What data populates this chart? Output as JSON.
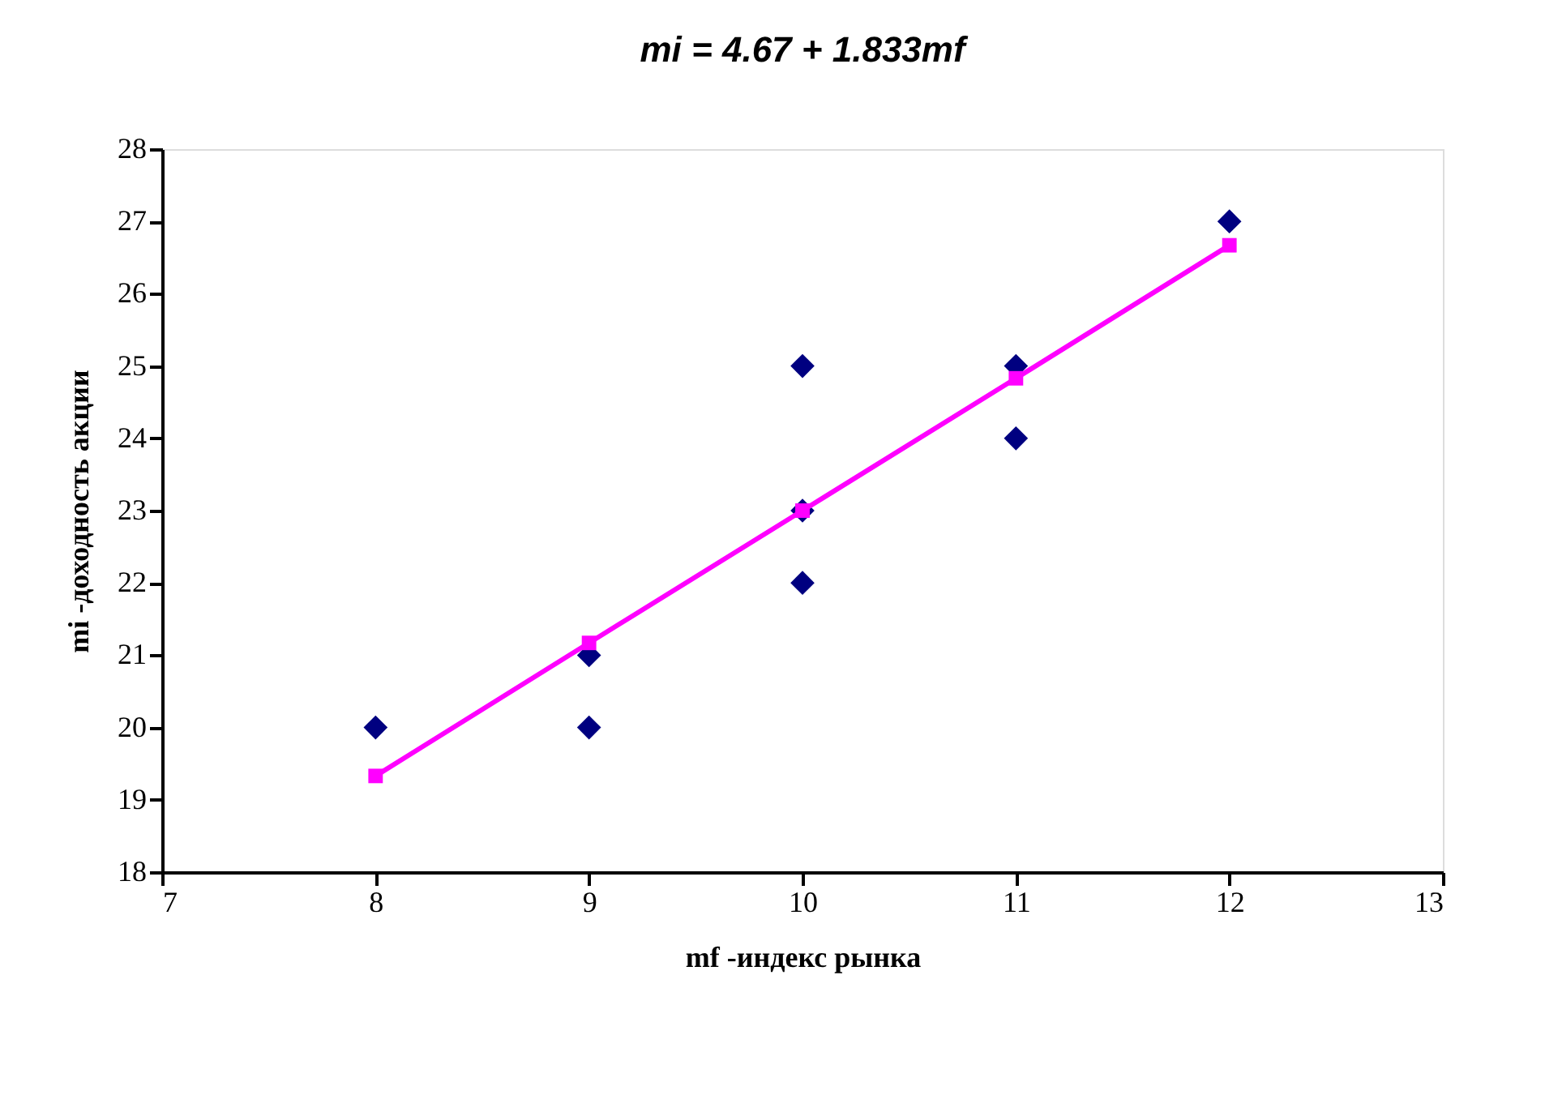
{
  "chart_data": {
    "type": "scatter",
    "title": "mi = 4.67 + 1.833mf",
    "xlabel": "mf -индекс рынка",
    "ylabel": "mi -доходность акции",
    "series": [
      {
        "color": "#000080",
        "marker": "diamond",
        "x": [
          8,
          9,
          9,
          10,
          10,
          10,
          11,
          11,
          12
        ],
        "values": [
          20,
          21,
          20,
          25,
          23,
          22,
          25,
          24,
          27
        ]
      },
      {
        "type": "line",
        "color": "#ff00ff",
        "marker": "square",
        "line_style": "solid",
        "x": [
          8,
          9,
          10,
          11,
          12
        ],
        "values": [
          19.33,
          21.17,
          23.0,
          24.83,
          26.67
        ]
      }
    ],
    "xlim": [
      7,
      13
    ],
    "xticks": [
      7,
      8,
      9,
      10,
      11,
      12,
      13
    ],
    "ylim": [
      18,
      28
    ],
    "yticks": [
      18,
      19,
      20,
      21,
      22,
      23,
      24,
      25,
      26,
      27,
      28
    ],
    "grid": false
  }
}
